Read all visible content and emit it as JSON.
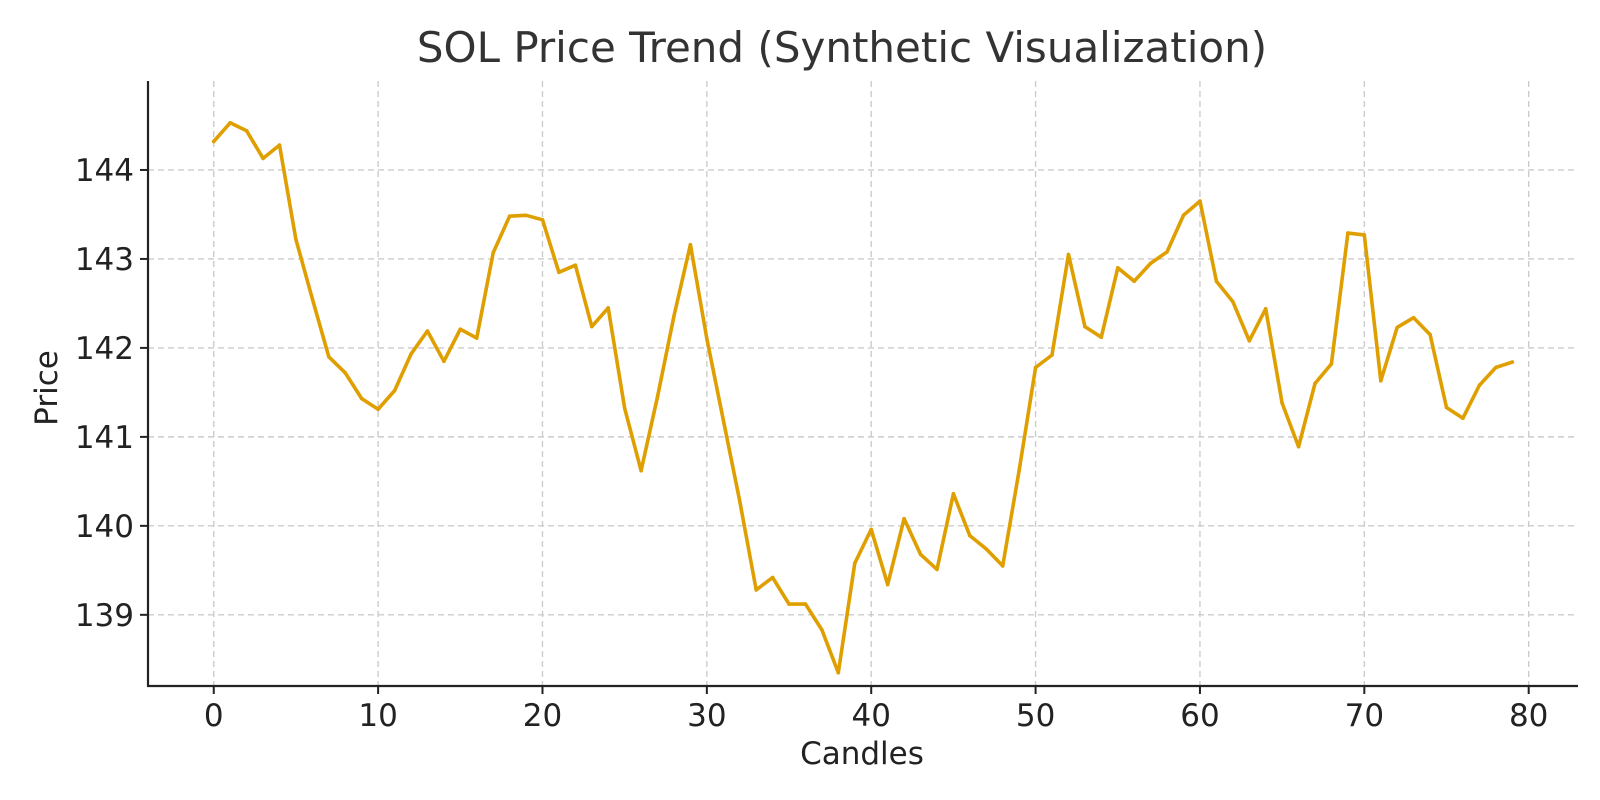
{
  "chart_data": {
    "type": "line",
    "title": "SOL Price Trend (Synthetic Visualization)",
    "xlabel": "Candles",
    "ylabel": "Price",
    "xlim": [
      -4,
      83
    ],
    "ylim": [
      138.2,
      145.0
    ],
    "xticks": [
      0,
      10,
      20,
      30,
      40,
      50,
      60,
      70,
      80
    ],
    "xtick_labels": [
      "0",
      "10",
      "20",
      "30",
      "40",
      "50",
      "60",
      "70",
      "80"
    ],
    "yticks": [
      139,
      140,
      141,
      142,
      143,
      144
    ],
    "ytick_labels": [
      "139",
      "140",
      "141",
      "142",
      "143",
      "144"
    ],
    "grid": true,
    "color": "#e09f00",
    "series": [
      {
        "name": "SOL Price",
        "x": [
          0,
          1,
          2,
          3,
          4,
          5,
          6,
          7,
          8,
          9,
          10,
          11,
          12,
          13,
          14,
          15,
          16,
          17,
          18,
          19,
          20,
          21,
          22,
          23,
          24,
          25,
          26,
          27,
          28,
          29,
          30,
          31,
          32,
          33,
          34,
          35,
          36,
          37,
          38,
          39,
          40,
          41,
          42,
          43,
          44,
          45,
          46,
          47,
          48,
          49,
          50,
          51,
          52,
          53,
          54,
          55,
          56,
          57,
          58,
          59,
          60,
          61,
          62,
          63,
          64,
          65,
          66,
          67,
          68,
          69,
          70,
          71,
          72,
          73,
          74,
          75,
          76,
          77,
          78,
          79
        ],
        "values": [
          144.32,
          144.53,
          144.44,
          144.13,
          144.28,
          143.22,
          142.55,
          141.9,
          141.72,
          141.43,
          141.31,
          141.52,
          141.93,
          142.19,
          141.85,
          142.21,
          142.11,
          143.07,
          143.48,
          143.49,
          143.44,
          142.85,
          142.93,
          142.24,
          142.45,
          141.32,
          140.62,
          141.45,
          142.36,
          143.16,
          142.1,
          141.19,
          140.28,
          139.28,
          139.42,
          139.12,
          139.12,
          138.83,
          138.35,
          139.58,
          139.96,
          139.34,
          140.08,
          139.68,
          139.51,
          140.36,
          139.89,
          139.74,
          139.55,
          140.62,
          141.78,
          141.92,
          143.05,
          142.24,
          142.12,
          142.9,
          142.75,
          142.95,
          143.08,
          143.49,
          143.65,
          142.75,
          142.52,
          142.08,
          142.44,
          141.38,
          140.89,
          141.6,
          141.82,
          143.29,
          143.27,
          141.63,
          142.23,
          142.34,
          142.15,
          141.33,
          141.21,
          141.58,
          141.78,
          141.84
        ]
      }
    ]
  }
}
